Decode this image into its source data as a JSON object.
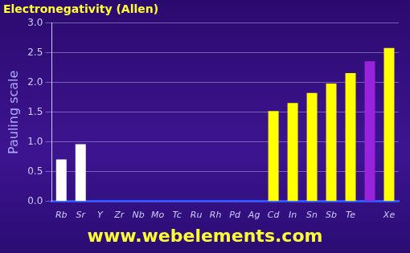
{
  "chart_data": {
    "type": "bar",
    "title": "Electronegativity (Allen)",
    "y_label": "Pauling scale",
    "annotations": [
      "www.webelements.com"
    ],
    "categories": [
      "Rb",
      "Sr",
      "Y",
      "Zr",
      "Nb",
      "Mo",
      "Tc",
      "Ru",
      "Rh",
      "Pd",
      "Ag",
      "Cd",
      "In",
      "Sn",
      "Sb",
      "Te",
      null,
      "Xe"
    ],
    "values": [
      0.706,
      0.963,
      null,
      null,
      null,
      null,
      null,
      null,
      null,
      null,
      null,
      1.521,
      1.656,
      1.824,
      1.984,
      2.158,
      2.359,
      2.582
    ],
    "colors": [
      "#ffffff",
      "#ffffff",
      "#ff0000",
      "#ff0000",
      "#ff0000",
      "#ff0000",
      "#ff0000",
      "#ff0000",
      "#ff0000",
      "#ff0000",
      "#ff0000",
      "#ffff00",
      "#ffff00",
      "#ffff00",
      "#ffff00",
      "#ffff00",
      "#9922dd",
      "#ffff00"
    ],
    "ylim": [
      0,
      3
    ],
    "yticks": [
      {
        "value": 0,
        "label": "0.0"
      },
      0.5,
      {
        "value": 1,
        "label": "1.0"
      },
      1.5,
      {
        "value": 2,
        "label": "2.0"
      },
      2.5,
      {
        "value": 3,
        "label": "3.0"
      }
    ],
    "grid": true
  }
}
